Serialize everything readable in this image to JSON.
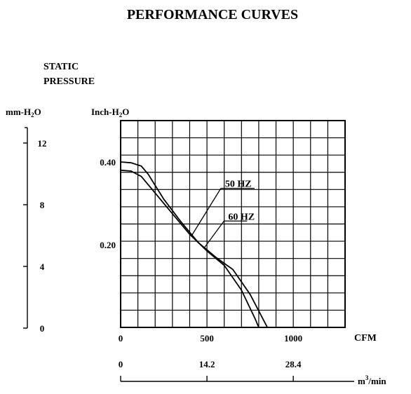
{
  "chart_data": {
    "type": "line",
    "title": "PERFORMANCE  CURVES",
    "ylabel_line1": "STATIC",
    "ylabel_line2": "PRESSURE",
    "y_unit_left": "mm-H",
    "y_unit_main": "Inch-H",
    "y_unit_sub": "2",
    "y_unit_suffix": "O",
    "x_unit": "CFM",
    "x2_unit": "m",
    "x2_unit_sup": "3",
    "x2_unit_suffix": "/min",
    "xlim": [
      0,
      1300
    ],
    "ylim": [
      0,
      0.5
    ],
    "grid": true,
    "x_ticks": [
      "0",
      "500",
      "1000"
    ],
    "x_tick_values": [
      0,
      500,
      1000
    ],
    "y_ticks": [
      "0.40",
      "0.20"
    ],
    "y_tick_values": [
      0.4,
      0.2
    ],
    "mm_ticks": [
      "12",
      "8",
      "4",
      "0"
    ],
    "mm_tick_values": [
      12,
      8,
      4,
      0
    ],
    "m3_ticks": [
      "0",
      "14.2",
      "28.4"
    ],
    "m3_tick_values": [
      0,
      500,
      1000
    ],
    "series": [
      {
        "name": "50 HZ",
        "x": [
          0,
          60,
          120,
          200,
          300,
          400,
          500,
          600,
          700,
          780,
          800
        ],
        "y": [
          0.38,
          0.378,
          0.365,
          0.325,
          0.275,
          0.225,
          0.185,
          0.15,
          0.09,
          0.02,
          0.0
        ]
      },
      {
        "name": "60 HZ",
        "x": [
          0,
          60,
          120,
          160,
          250,
          350,
          450,
          550,
          600,
          650,
          750,
          800,
          850
        ],
        "y": [
          0.4,
          0.398,
          0.39,
          0.37,
          0.31,
          0.255,
          0.205,
          0.17,
          0.155,
          0.14,
          0.08,
          0.04,
          0.0
        ]
      }
    ],
    "annotations": [
      {
        "text": "50 HZ",
        "series": 0,
        "at_x": 410
      },
      {
        "text": "60 HZ",
        "series": 1,
        "at_x": 485
      }
    ]
  }
}
